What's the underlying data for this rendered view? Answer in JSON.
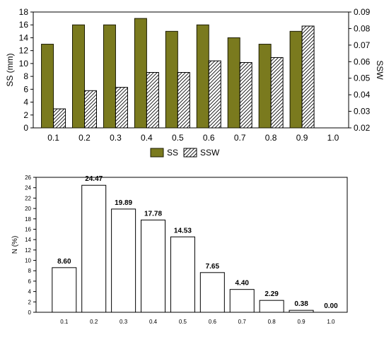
{
  "colors": {
    "ss": "#7a7a1e",
    "ss_stroke": "#1a1a00",
    "hatch": "#000000",
    "axis": "#000000",
    "bar2_fill": "#ffffff"
  },
  "chart_data": [
    {
      "type": "bar",
      "categories": [
        "0.1",
        "0.2",
        "0.3",
        "0.4",
        "0.5",
        "0.6",
        "0.7",
        "0.8",
        "0.9",
        "1.0"
      ],
      "series": [
        {
          "name": "SS",
          "axis": "left",
          "values": [
            13,
            16,
            16,
            17,
            15,
            16,
            14,
            13,
            15,
            null
          ]
        },
        {
          "name": "SSW",
          "axis": "right",
          "values": [
            0.0315,
            0.0425,
            0.0445,
            0.0535,
            0.0535,
            0.0605,
            0.0595,
            0.0625,
            0.0815,
            null
          ]
        }
      ],
      "ylabel": "SS (mm)",
      "ylabel_right": "SSW",
      "ylim": [
        0,
        18
      ],
      "yticks": [
        "0",
        "2",
        "4",
        "6",
        "8",
        "10",
        "12",
        "14",
        "16",
        "18"
      ],
      "ylim_right": [
        0.02,
        0.09
      ],
      "yticks_right": [
        "0.02",
        "0.03",
        "0.04",
        "0.05",
        "0.06",
        "0.07",
        "0.08",
        "0.09"
      ],
      "legend": [
        "SS",
        "SSW"
      ],
      "legend_position": "bottom"
    },
    {
      "type": "bar",
      "categories": [
        "0.1",
        "0.2",
        "0.3",
        "0.4",
        "0.5",
        "0.6",
        "0.7",
        "0.8",
        "0.9",
        "1.0"
      ],
      "values": [
        8.6,
        24.47,
        19.89,
        17.78,
        14.53,
        7.65,
        4.4,
        2.29,
        0.38,
        0.0
      ],
      "data_labels": [
        "8.60",
        "24.47",
        "19.89",
        "17.78",
        "14.53",
        "7.65",
        "4.40",
        "2.29",
        "0.38",
        "0.00"
      ],
      "ylabel": "N (%)",
      "ylim": [
        0,
        26
      ],
      "yticks": [
        "0",
        "2",
        "4",
        "6",
        "8",
        "10",
        "12",
        "14",
        "16",
        "18",
        "20",
        "22",
        "24",
        "26"
      ]
    }
  ]
}
